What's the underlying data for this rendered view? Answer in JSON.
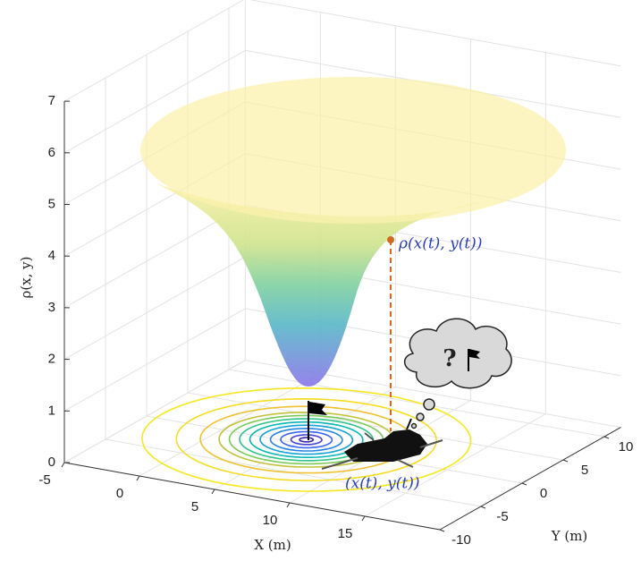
{
  "chart_data": {
    "type": "surface3d",
    "xlabel": "X (m)",
    "ylabel": "Y (m)",
    "zlabel": "ρ(x, y)",
    "xlim": [
      -5,
      20
    ],
    "ylim": [
      -10,
      12
    ],
    "zlim": [
      0,
      7
    ],
    "xticks": [
      -5,
      0,
      5,
      10,
      15
    ],
    "yticks": [
      -10,
      -5,
      0,
      5,
      10
    ],
    "zticks": [
      0,
      1,
      2,
      3,
      4,
      5,
      6,
      7
    ],
    "grid": true,
    "annotations": {
      "density_label": "ρ(x(t), y(t))",
      "position_label": "(x(t), y(t))",
      "thought": "?"
    }
  }
}
